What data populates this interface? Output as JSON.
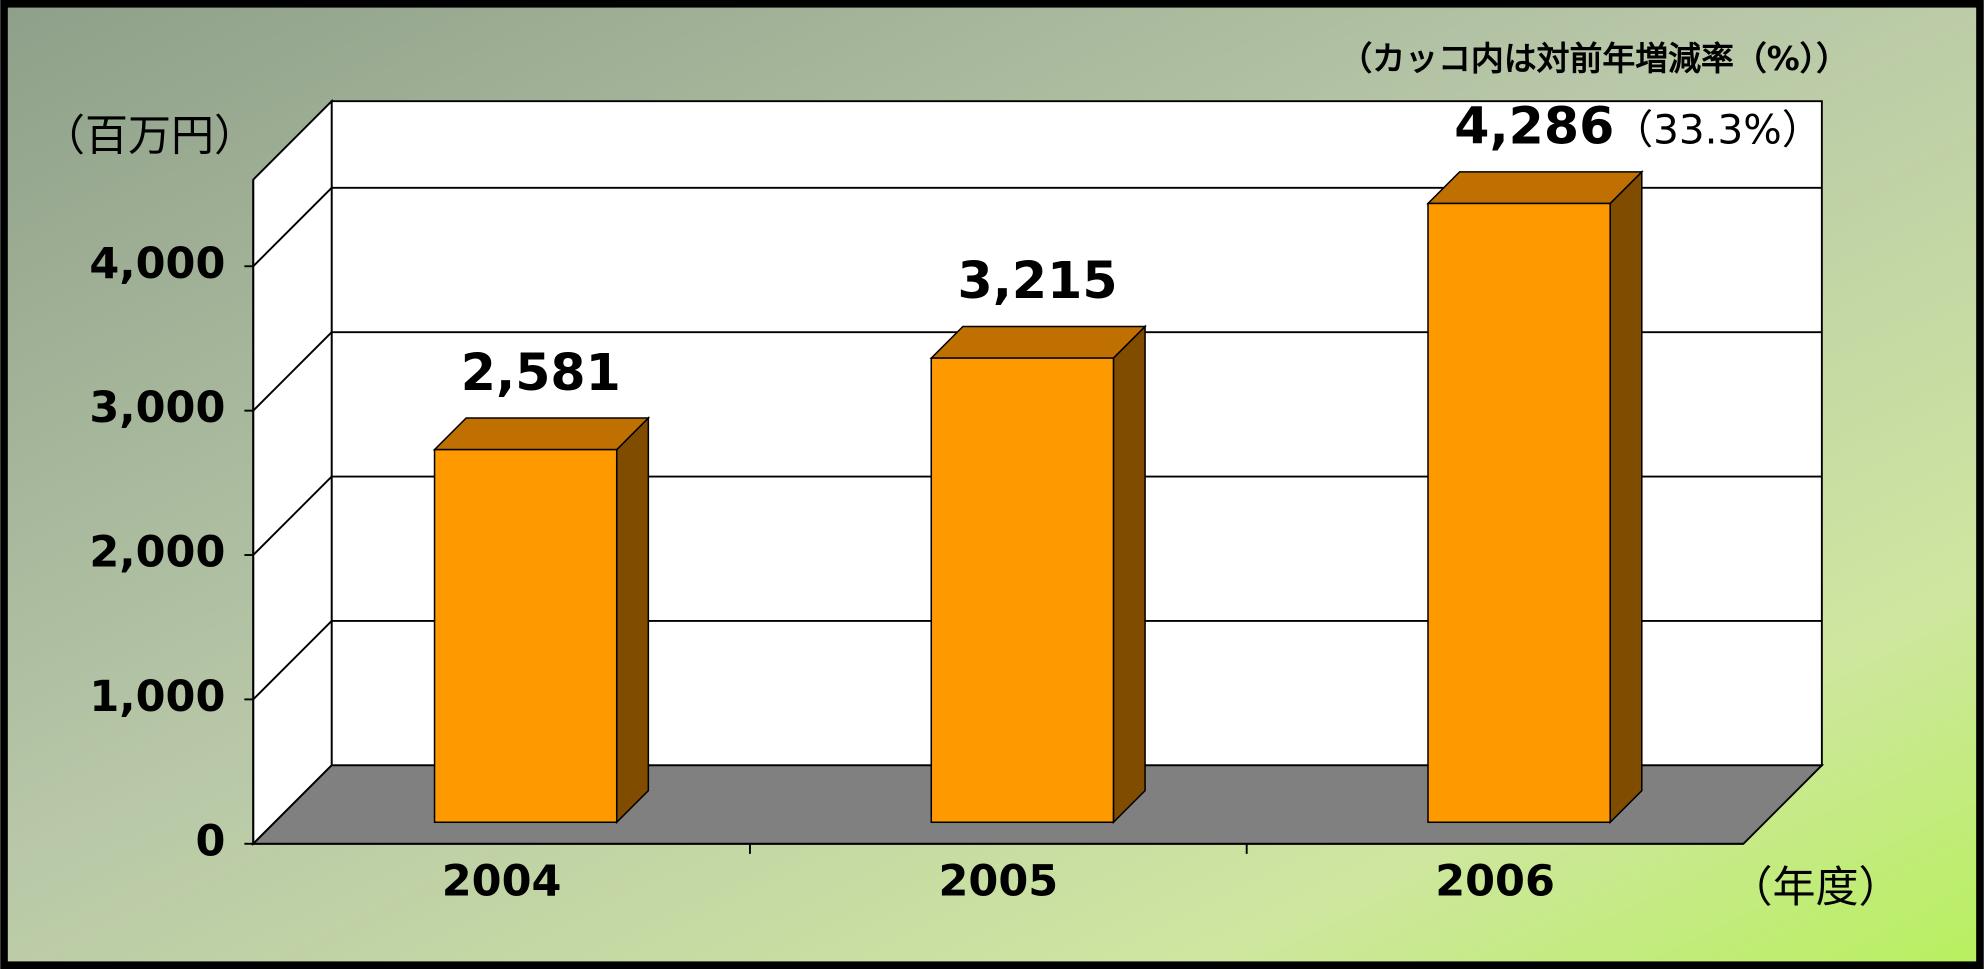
{
  "chart_data": {
    "type": "bar3d",
    "note": "（カッコ内は対前年増減率（%））",
    "y_axis_label": "（百万円）",
    "x_axis_label": "（年度）",
    "categories": [
      "2004",
      "2005",
      "2006"
    ],
    "values": [
      2581,
      3215,
      4286
    ],
    "value_labels": [
      "2,581",
      "3,215",
      "4,286"
    ],
    "annotation": "（33.3%）",
    "color": "#ff9900",
    "ylim": [
      0,
      4600
    ],
    "yticks": [
      0,
      {
        "value": 1000,
        "label": "1,000"
      },
      {
        "value": 2000,
        "label": "2,000"
      },
      {
        "value": 3000,
        "label": "3,000"
      },
      {
        "value": 4000,
        "label": "4,000"
      }
    ],
    "grid": true
  }
}
